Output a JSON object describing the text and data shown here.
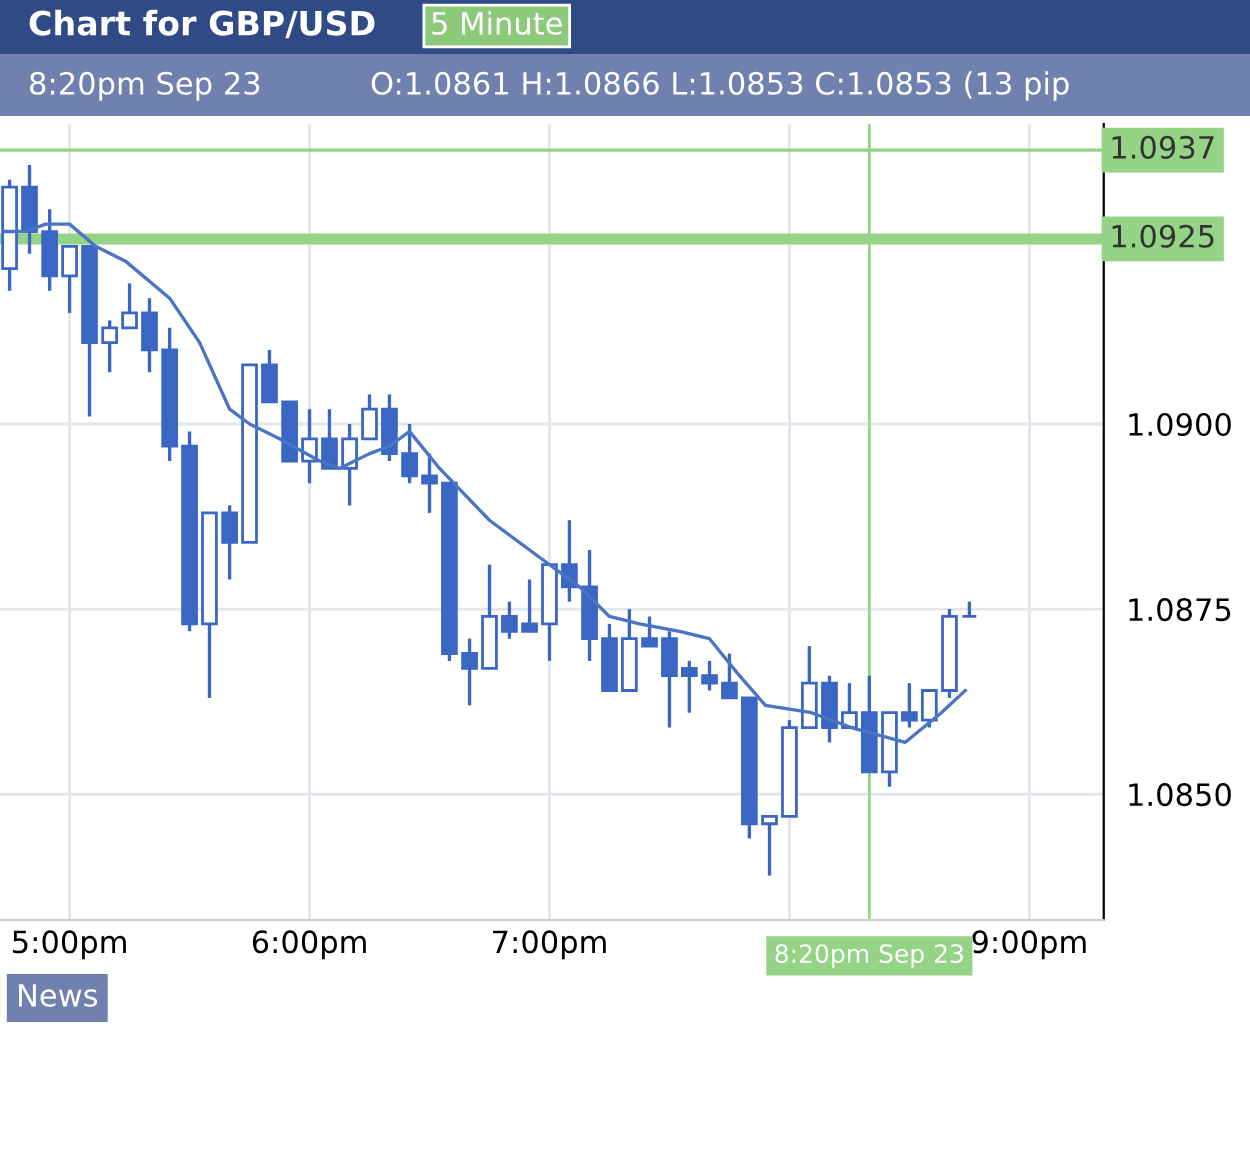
{
  "chart_data": {
    "type": "candlestick",
    "title": "Chart for GBP/USD",
    "subtitle": "5 Minute",
    "annotations": [
      "8:20pm Sep 23",
      "O:1.0861 H:1.0866 L:1.0853 C:1.0853 (13 pip",
      "News"
    ],
    "color": "#3a66c4",
    "x": [
      16.75,
      16.833,
      16.917,
      17.0,
      17.083,
      17.167,
      17.25,
      17.333,
      17.417,
      17.5,
      17.583,
      17.667,
      17.75,
      17.833,
      17.917,
      18.0,
      18.083,
      18.167,
      18.25,
      18.333,
      18.417,
      18.5,
      18.583,
      18.667,
      18.75,
      18.833,
      18.917,
      19.0,
      19.083,
      19.167,
      19.25,
      19.333,
      19.417,
      19.5,
      19.583,
      19.667,
      19.75,
      19.833,
      19.917,
      20.0,
      20.083,
      20.167,
      20.25,
      20.333,
      20.417,
      20.5,
      20.583,
      20.667,
      20.75
    ],
    "ohlc": [
      [
        1.0921,
        1.0933,
        1.0918,
        1.0932
      ],
      [
        1.0932,
        1.0935,
        1.0923,
        1.0926
      ],
      [
        1.0926,
        1.0929,
        1.0918,
        1.092
      ],
      [
        1.092,
        1.0924,
        1.0915,
        1.0924
      ],
      [
        1.0924,
        1.0924,
        1.0901,
        1.0911
      ],
      [
        1.0911,
        1.0914,
        1.0907,
        1.0913
      ],
      [
        1.0913,
        1.0919,
        1.0913,
        1.0915
      ],
      [
        1.0915,
        1.0917,
        1.0907,
        1.091
      ],
      [
        1.091,
        1.0913,
        1.0895,
        1.0897
      ],
      [
        1.0897,
        1.0899,
        1.0872,
        1.0873
      ],
      [
        1.0873,
        1.0888,
        1.0863,
        1.0888
      ],
      [
        1.0888,
        1.0889,
        1.0879,
        1.0884
      ],
      [
        1.0884,
        1.0908,
        1.0884,
        1.0908
      ],
      [
        1.0908,
        1.091,
        1.0903,
        1.0903
      ],
      [
        1.0903,
        1.0903,
        1.0895,
        1.0895
      ],
      [
        1.0895,
        1.0902,
        1.0892,
        1.0898
      ],
      [
        1.0898,
        1.0902,
        1.0894,
        1.0894
      ],
      [
        1.0894,
        1.09,
        1.0889,
        1.0898
      ],
      [
        1.0898,
        1.0904,
        1.0898,
        1.0902
      ],
      [
        1.0902,
        1.0904,
        1.0895,
        1.0896
      ],
      [
        1.0896,
        1.09,
        1.0892,
        1.0893
      ],
      [
        1.0893,
        1.0896,
        1.0888,
        1.0892
      ],
      [
        1.0892,
        1.0892,
        1.0868,
        1.0869
      ],
      [
        1.0869,
        1.0871,
        1.0862,
        1.0867
      ],
      [
        1.0867,
        1.0881,
        1.0867,
        1.0874
      ],
      [
        1.0874,
        1.0876,
        1.0871,
        1.0872
      ],
      [
        1.0873,
        1.0879,
        1.0872,
        1.0872
      ],
      [
        1.0873,
        1.0881,
        1.0868,
        1.0881
      ],
      [
        1.0881,
        1.0887,
        1.0876,
        1.0878
      ],
      [
        1.0878,
        1.0883,
        1.0868,
        1.0871
      ],
      [
        1.0871,
        1.0873,
        1.0864,
        1.0864
      ],
      [
        1.0864,
        1.0875,
        1.0864,
        1.0871
      ],
      [
        1.0871,
        1.0874,
        1.087,
        1.087
      ],
      [
        1.0871,
        1.0872,
        1.0859,
        1.0866
      ],
      [
        1.0867,
        1.0868,
        1.0861,
        1.0866
      ],
      [
        1.0866,
        1.0868,
        1.0864,
        1.0865
      ],
      [
        1.0865,
        1.0869,
        1.0863,
        1.0863
      ],
      [
        1.0863,
        1.0863,
        1.0844,
        1.0846
      ],
      [
        1.0846,
        1.0847,
        1.0839,
        1.0847
      ],
      [
        1.0847,
        1.086,
        1.0847,
        1.0859
      ],
      [
        1.0859,
        1.087,
        1.0859,
        1.0865
      ],
      [
        1.0865,
        1.0866,
        1.0857,
        1.0859
      ],
      [
        1.0859,
        1.0865,
        1.0859,
        1.0861
      ],
      [
        1.0861,
        1.0866,
        1.0853,
        1.0853
      ],
      [
        1.0853,
        1.0861,
        1.0851,
        1.0861
      ],
      [
        1.0861,
        1.0865,
        1.0859,
        1.086
      ],
      [
        1.086,
        1.0864,
        1.0859,
        1.0864
      ],
      [
        1.0864,
        1.0875,
        1.0863,
        1.0874
      ],
      [
        1.0874,
        1.0876,
        1.0874,
        1.0874
      ]
    ],
    "series": [
      {
        "type": "line",
        "color": "#4a74c4",
        "x": [
          16.733,
          16.817,
          16.9,
          17.0,
          17.108,
          17.233,
          17.417,
          17.542,
          17.667,
          17.75,
          17.875,
          18.042,
          18.125,
          18.25,
          18.333,
          18.417,
          18.542,
          18.75,
          18.958,
          19.125,
          19.25,
          19.375,
          19.542,
          19.667,
          19.792,
          19.9,
          20.092,
          20.258,
          20.483,
          20.633,
          20.733
        ],
        "values": [
          1.0926,
          1.0926,
          1.0927,
          1.0927,
          1.0924,
          1.0922,
          1.0917,
          1.0911,
          1.0902,
          1.09,
          1.0898,
          1.0895,
          1.0894,
          1.0896,
          1.0897,
          1.0899,
          1.0894,
          1.0887,
          1.0882,
          1.0878,
          1.0874,
          1.0873,
          1.0872,
          1.0871,
          1.0866,
          1.0862,
          1.0861,
          1.0859,
          1.0857,
          1.0861,
          1.0864
        ]
      }
    ],
    "xlim": [
      16.71,
      21.31
    ],
    "ylim": [
      1.0833,
      1.09405
    ],
    "xticks": [
      {
        "value": 17,
        "label": "5:00pm"
      },
      {
        "value": 18,
        "label": "6:00pm"
      },
      {
        "value": 19,
        "label": "7:00pm"
      },
      {
        "value": 20,
        "label": null
      },
      {
        "value": 21,
        "label": "9:00pm"
      }
    ],
    "yticks": [
      {
        "value": 1.085,
        "label": "1.0850"
      },
      {
        "value": 1.0875,
        "label": "1.0875"
      },
      {
        "value": 1.09,
        "label": "1.0900"
      }
    ],
    "ref_lines": [
      {
        "axis": "y",
        "value": 1.0937,
        "label": "1.0937",
        "color": "#95d486"
      },
      {
        "axis": "y",
        "value": 1.0925,
        "label": "1.0925",
        "color": "#95d486"
      },
      {
        "axis": "x",
        "value": 20.333,
        "label": "8:20pm Sep 23",
        "color": "#95d486"
      }
    ],
    "grid": true,
    "line_style": "solid",
    "marker": "none"
  }
}
